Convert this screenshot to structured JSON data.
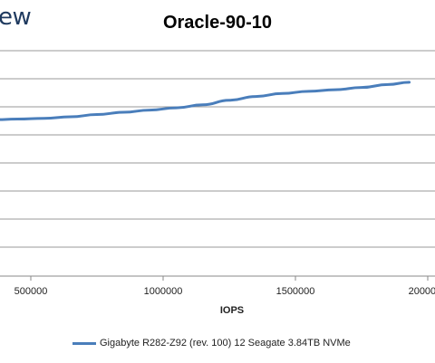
{
  "logo_text": "ew",
  "chart_data": {
    "type": "line",
    "title": "Oracle-90-10",
    "xlabel": "IOPS",
    "ylabel": "",
    "x_ticks": [
      500000,
      1000000,
      1500000,
      2000000
    ],
    "x_tick_labels": [
      "500000",
      "1000000",
      "1500000",
      "2000000"
    ],
    "grid": true,
    "legend_position": "bottom",
    "series": [
      {
        "name": "Gigabyte R282-Z92 (rev. 100) 12 Seagate 3.84TB NVMe",
        "color": "#4a7ebb",
        "x": [
          350000,
          450000,
          550000,
          650000,
          750000,
          850000,
          950000,
          1050000,
          1150000,
          1250000,
          1350000,
          1450000,
          1550000,
          1650000,
          1750000,
          1850000,
          1930000
        ],
        "y": [
          0.54,
          0.545,
          0.55,
          0.56,
          0.575,
          0.59,
          0.605,
          0.62,
          0.64,
          0.67,
          0.695,
          0.715,
          0.73,
          0.74,
          0.755,
          0.775,
          0.79
        ]
      }
    ],
    "ylim": [
      -0.5,
      1.0
    ]
  }
}
